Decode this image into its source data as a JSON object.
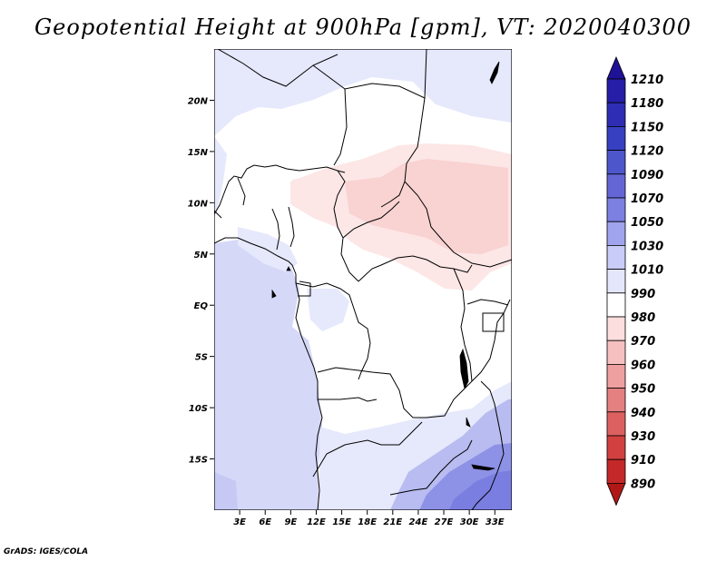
{
  "title": "Geopotential Height at 900hPa [gpm], VT: 2020040300",
  "credit": "GrADS: IGES/COLA",
  "map": {
    "lon_range": [
      0,
      35
    ],
    "lat_range": [
      -20,
      25
    ],
    "x_ticks": [
      "3E",
      "6E",
      "9E",
      "12E",
      "15E",
      "18E",
      "21E",
      "24E",
      "27E",
      "30E",
      "33E"
    ],
    "y_ticks": [
      "20N",
      "15N",
      "10N",
      "5N",
      "EQ",
      "5S",
      "10S",
      "15S"
    ],
    "background_color": "#ffffff",
    "land_outline_color": "#000000"
  },
  "colorbar": {
    "levels": [
      "1210",
      "1180",
      "1150",
      "1120",
      "1090",
      "1070",
      "1050",
      "1030",
      "1010",
      "990",
      "980",
      "970",
      "960",
      "950",
      "940",
      "930",
      "910",
      "890"
    ],
    "colors": [
      "#1e1296",
      "#261ea6",
      "#2d2eb4",
      "#3640c0",
      "#4e56cc",
      "#6466d6",
      "#7c80e0",
      "#a0a4ec",
      "#c8ccf6",
      "#e4e6fc",
      "#ffffff",
      "#fcdede",
      "#f6c0c0",
      "#eea0a0",
      "#e48080",
      "#dc6060",
      "#d24040",
      "#c42828",
      "#b01818"
    ]
  },
  "shading": {
    "ocean_color": "#d6d8f8",
    "land_light_blue": "#e6e8fc",
    "pink_light": "#fde6e6",
    "pink_mid": "#f9d2d2",
    "blue_mid": "#b8bcf0",
    "blue_dark": "#8e92e6",
    "blue_deep": "#7a7ee0"
  }
}
